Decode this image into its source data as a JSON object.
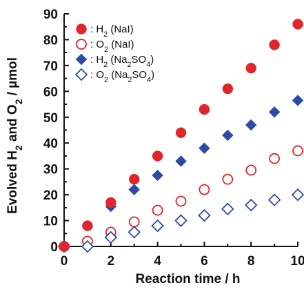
{
  "chart_data": {
    "type": "scatter",
    "xlabel": "Reaction time / h",
    "ylabel_parts": [
      "Evolved H",
      "2",
      " and O",
      "2",
      " / µmol"
    ],
    "xlim": [
      0,
      10
    ],
    "ylim": [
      0,
      90
    ],
    "x_ticks": [
      "0",
      "2",
      "4",
      "6",
      "8",
      "10"
    ],
    "y_ticks": [
      "0",
      "10",
      "20",
      "30",
      "40",
      "50",
      "60",
      "70",
      "80",
      "90"
    ],
    "grid": false,
    "legend_position": "top-left",
    "series": [
      {
        "name": "H2 (NaI)",
        "legend_parts": [
          ": H",
          "2",
          " (NaI)"
        ],
        "marker": "circle",
        "filled": true,
        "color": "#e0262a",
        "x": [
          0,
          1,
          2,
          3,
          4,
          5,
          6,
          7,
          8,
          9,
          10
        ],
        "y": [
          0,
          8,
          17,
          26,
          35,
          44,
          53,
          61,
          69,
          78,
          86
        ]
      },
      {
        "name": "O2 (NaI)",
        "legend_parts": [
          ": O",
          "2",
          " (NaI)"
        ],
        "marker": "circle",
        "filled": false,
        "color": "#e0262a",
        "x": [
          0,
          1,
          2,
          3,
          4,
          5,
          6,
          7,
          8,
          9,
          10
        ],
        "y": [
          0,
          2,
          5.5,
          9.5,
          14,
          17.5,
          22,
          26,
          29.5,
          34,
          37
        ]
      },
      {
        "name": "H2 (Na2SO4)",
        "legend_parts": [
          ": H",
          "2",
          " (Na",
          "2",
          "SO",
          "4",
          ")"
        ],
        "marker": "diamond",
        "filled": true,
        "color": "#2e4aa8",
        "x": [
          0,
          1,
          2,
          3,
          4,
          5,
          6,
          7,
          8,
          9,
          10
        ],
        "y": [
          0,
          8,
          15.5,
          22,
          27.5,
          33,
          38,
          43,
          47,
          52,
          56.5
        ]
      },
      {
        "name": "O2 (Na2SO4)",
        "legend_parts": [
          ": O",
          "2",
          " (Na",
          "2",
          "SO",
          "4",
          ")"
        ],
        "marker": "diamond",
        "filled": false,
        "color": "#2e4aa8",
        "x": [
          0,
          1,
          2,
          3,
          4,
          5,
          6,
          7,
          8,
          9,
          10
        ],
        "y": [
          0,
          0,
          3.5,
          5.5,
          8,
          10,
          12,
          14.5,
          16,
          18,
          20
        ]
      }
    ]
  }
}
